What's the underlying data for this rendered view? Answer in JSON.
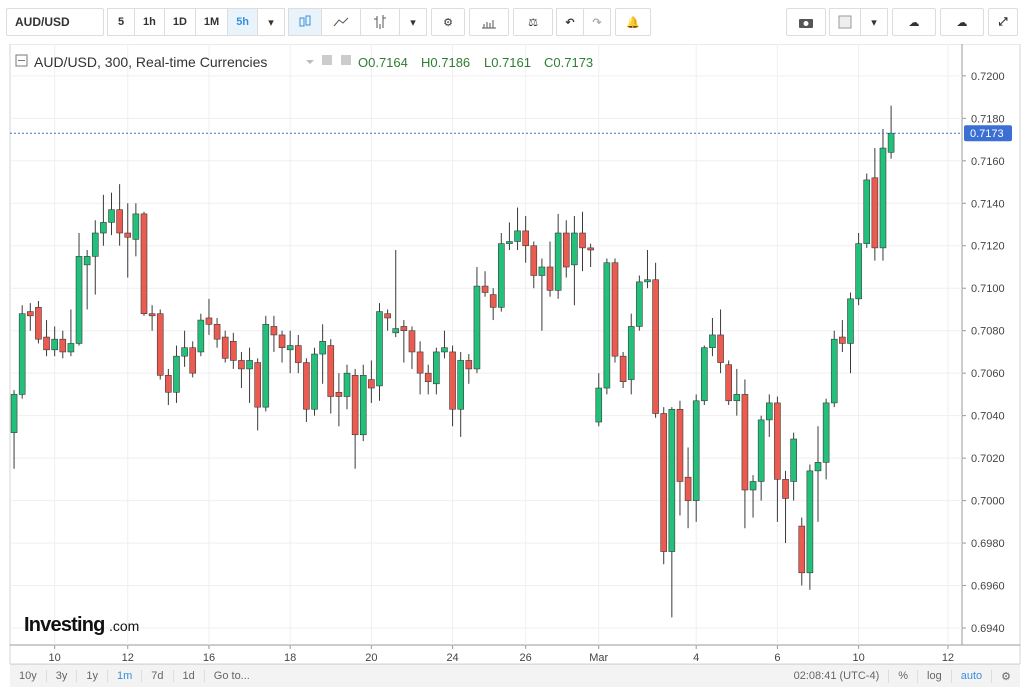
{
  "toolbar": {
    "symbol": "AUD/USD",
    "intervals": [
      "5",
      "1h",
      "1D",
      "1M",
      "5h"
    ]
  },
  "header": {
    "title": "AUD/USD, 300, Real-time Currencies",
    "ohlc": [
      "O0.7164",
      "H0.7186",
      "L0.7161",
      "C0.7173"
    ]
  },
  "logo": {
    "brand": "Investing",
    "suffix": ".com"
  },
  "footer": {
    "ranges": [
      "10y",
      "3y",
      "1y",
      "1m",
      "7d",
      "1d"
    ],
    "goto": "Go to...",
    "time": "02:08:41 (UTC-4)",
    "options": [
      "%",
      "log",
      "auto"
    ]
  },
  "chart_data": {
    "type": "candlestick",
    "up_color": "#22c07a",
    "down_color": "#ec5b4f",
    "grid": true,
    "ylim": [
      0.6932,
      0.7215
    ],
    "yticks": [
      {
        "value": 0.694,
        "label": "0.6940"
      },
      {
        "value": 0.696,
        "label": "0.6960"
      },
      {
        "value": 0.698,
        "label": "0.6980"
      },
      {
        "value": 0.7,
        "label": "0.7000"
      },
      {
        "value": 0.702,
        "label": "0.7020"
      },
      {
        "value": 0.704,
        "label": "0.7040"
      },
      {
        "value": 0.706,
        "label": "0.7060"
      },
      {
        "value": 0.708,
        "label": "0.7080"
      },
      {
        "value": 0.71,
        "label": "0.7100"
      },
      {
        "value": 0.712,
        "label": "0.7120"
      },
      {
        "value": 0.714,
        "label": "0.7140"
      },
      {
        "value": 0.716,
        "label": "0.7160"
      },
      {
        "value": 0.718,
        "label": "0.7180"
      },
      {
        "value": 0.72,
        "label": "0.7200"
      }
    ],
    "last_price": 0.7173,
    "categories": [
      null,
      null,
      null,
      null,
      null,
      "10",
      null,
      null,
      null,
      null,
      null,
      null,
      null,
      null,
      "12",
      null,
      null,
      null,
      null,
      null,
      null,
      null,
      null,
      null,
      "16",
      null,
      null,
      null,
      null,
      null,
      null,
      null,
      null,
      null,
      "18",
      null,
      null,
      null,
      null,
      null,
      null,
      null,
      null,
      null,
      "20",
      null,
      null,
      null,
      null,
      null,
      null,
      null,
      null,
      null,
      "24",
      null,
      null,
      null,
      null,
      null,
      null,
      null,
      null,
      "26",
      null,
      null,
      null,
      null,
      null,
      null,
      null,
      null,
      "Mar",
      null,
      null,
      null,
      null,
      null,
      null,
      null,
      null,
      null,
      null,
      null,
      "4",
      null,
      null,
      null,
      null,
      null,
      null,
      null,
      null,
      null,
      "6",
      null,
      null,
      null,
      null,
      null,
      null,
      null,
      null,
      null,
      "10",
      null,
      null,
      null,
      null,
      null,
      null,
      null,
      null,
      null,
      null,
      "12"
    ],
    "open": [
      0.7032,
      0.705,
      0.7089,
      0.7091,
      0.7077,
      0.7071,
      0.7076,
      0.707,
      0.7074,
      0.7111,
      0.7115,
      0.7126,
      0.7131,
      0.7137,
      0.7126,
      0.7123,
      0.7135,
      0.7088,
      0.7088,
      0.7059,
      0.7051,
      0.7068,
      0.7072,
      0.707,
      0.7086,
      0.7083,
      0.7077,
      0.7075,
      0.7066,
      0.7062,
      0.7065,
      0.7044,
      0.7082,
      0.7078,
      0.7071,
      0.7073,
      0.7065,
      0.7043,
      0.7069,
      0.7073,
      0.7051,
      0.7049,
      0.7059,
      0.7031,
      0.7057,
      0.7054,
      0.7088,
      0.7079,
      0.7082,
      0.708,
      0.707,
      0.706,
      0.7055,
      0.707,
      0.707,
      0.7043,
      0.7066,
      0.7062,
      0.7101,
      0.7097,
      0.7091,
      0.7121,
      0.7122,
      0.7127,
      0.712,
      0.7106,
      0.711,
      0.7099,
      0.7126,
      0.7111,
      0.7126,
      0.7119,
      0.7037,
      0.7053,
      0.7112,
      0.7068,
      0.7057,
      0.7082,
      0.7103,
      0.7104,
      0.7041,
      0.6976,
      0.7043,
      0.7011,
      0.7,
      0.7047,
      0.7072,
      0.7078,
      0.7064,
      0.7047,
      0.705,
      0.7005,
      0.7009,
      0.7038,
      0.7046,
      0.701,
      0.7009,
      0.6988,
      0.6966,
      0.7014,
      0.7018,
      0.7046,
      0.7077,
      0.7074,
      0.7095,
      0.7121,
      0.7152,
      0.7119,
      0.7164,
      null,
      null,
      null,
      null,
      null,
      null,
      null
    ],
    "high": [
      0.7052,
      0.7092,
      0.7093,
      0.7094,
      0.7085,
      0.7082,
      0.708,
      0.709,
      0.7126,
      0.7118,
      0.7132,
      0.7144,
      0.7145,
      0.7149,
      0.714,
      0.714,
      0.7136,
      0.7092,
      0.709,
      0.7062,
      0.7073,
      0.708,
      0.7075,
      0.7088,
      0.7095,
      0.7086,
      0.708,
      0.7079,
      0.707,
      0.7072,
      0.7067,
      0.7087,
      0.7087,
      0.708,
      0.708,
      0.7078,
      0.7067,
      0.7072,
      0.7083,
      0.7076,
      0.706,
      0.7064,
      0.7062,
      0.7064,
      0.7066,
      0.7093,
      0.709,
      0.7118,
      0.7085,
      0.7082,
      0.7075,
      0.7064,
      0.7072,
      0.708,
      0.7073,
      0.707,
      0.7069,
      0.711,
      0.7108,
      0.71,
      0.7126,
      0.7131,
      0.7138,
      0.7134,
      0.7122,
      0.7114,
      0.7122,
      0.7135,
      0.7132,
      0.7134,
      0.7136,
      0.7121,
      0.706,
      0.7114,
      0.7114,
      0.707,
      0.7088,
      0.7106,
      0.7118,
      0.7112,
      0.7044,
      0.7044,
      0.7047,
      0.7025,
      0.705,
      0.7073,
      0.7086,
      0.709,
      0.7066,
      0.7062,
      0.7057,
      0.7012,
      0.704,
      0.705,
      0.7049,
      0.7014,
      0.7032,
      0.6992,
      0.7017,
      0.7035,
      0.7048,
      0.708,
      0.7085,
      0.7098,
      0.7126,
      0.7154,
      0.7166,
      0.7175,
      0.7186,
      null,
      null,
      null,
      null,
      null,
      null,
      null
    ],
    "low": [
      0.7015,
      0.7048,
      0.708,
      0.7074,
      0.7068,
      0.7068,
      0.7067,
      0.7068,
      0.7073,
      0.709,
      0.7097,
      0.712,
      0.7125,
      0.712,
      0.7105,
      0.7115,
      0.7087,
      0.708,
      0.7057,
      0.7045,
      0.7046,
      0.7063,
      0.7058,
      0.7068,
      0.7078,
      0.7072,
      0.7065,
      0.7062,
      0.7053,
      0.7046,
      0.7033,
      0.7042,
      0.707,
      0.7065,
      0.706,
      0.706,
      0.7037,
      0.704,
      0.7055,
      0.7041,
      0.7035,
      0.7043,
      0.7015,
      0.7028,
      0.7046,
      0.7047,
      0.708,
      0.7077,
      0.7065,
      0.7062,
      0.705,
      0.705,
      0.705,
      0.7067,
      0.7035,
      0.703,
      0.7055,
      0.706,
      0.7096,
      0.7085,
      0.7089,
      0.7118,
      0.7118,
      0.7112,
      0.71,
      0.708,
      0.7096,
      0.7095,
      0.7105,
      0.7092,
      0.7108,
      0.711,
      0.7035,
      0.705,
      0.7065,
      0.7053,
      0.705,
      0.708,
      0.71,
      0.7039,
      0.697,
      0.6945,
      0.6993,
      0.6987,
      0.699,
      0.7045,
      0.7068,
      0.706,
      0.7045,
      0.704,
      0.6987,
      0.6992,
      0.7,
      0.703,
      0.699,
      0.698,
      0.7,
      0.696,
      0.6958,
      0.699,
      0.701,
      0.7044,
      0.707,
      0.706,
      0.7092,
      0.7119,
      0.7113,
      0.7113,
      0.7161,
      null,
      null,
      null,
      null,
      null,
      null,
      null
    ],
    "close": [
      0.705,
      0.7088,
      0.7087,
      0.7076,
      0.7071,
      0.7076,
      0.707,
      0.7074,
      0.7115,
      0.7115,
      0.7126,
      0.7131,
      0.7137,
      0.7126,
      0.7124,
      0.7135,
      0.7088,
      0.7087,
      0.7059,
      0.7051,
      0.7068,
      0.7072,
      0.706,
      0.7085,
      0.7083,
      0.7076,
      0.7067,
      0.7066,
      0.7062,
      0.7066,
      0.7044,
      0.7083,
      0.7078,
      0.7072,
      0.7073,
      0.7065,
      0.7043,
      0.7069,
      0.7075,
      0.7049,
      0.7049,
      0.706,
      0.7031,
      0.7059,
      0.7053,
      0.7089,
      0.7086,
      0.7081,
      0.708,
      0.707,
      0.706,
      0.7056,
      0.707,
      0.7072,
      0.7043,
      0.7066,
      0.7062,
      0.7101,
      0.7098,
      0.7091,
      0.7121,
      0.7122,
      0.7127,
      0.712,
      0.7106,
      0.711,
      0.7099,
      0.7126,
      0.711,
      0.7126,
      0.7119,
      0.7118,
      0.7053,
      0.7112,
      0.7068,
      0.7056,
      0.7082,
      0.7103,
      0.7104,
      0.7041,
      0.6976,
      0.7043,
      0.7009,
      0.7,
      0.7047,
      0.7072,
      0.7078,
      0.7065,
      0.7047,
      0.705,
      0.7005,
      0.7009,
      0.7038,
      0.7046,
      0.701,
      0.7001,
      0.7029,
      0.6966,
      0.7014,
      0.7018,
      0.7046,
      0.7076,
      0.7074,
      0.7095,
      0.7121,
      0.7151,
      0.7119,
      0.7166,
      0.7173,
      null,
      null,
      null,
      null,
      null,
      null,
      null
    ]
  }
}
